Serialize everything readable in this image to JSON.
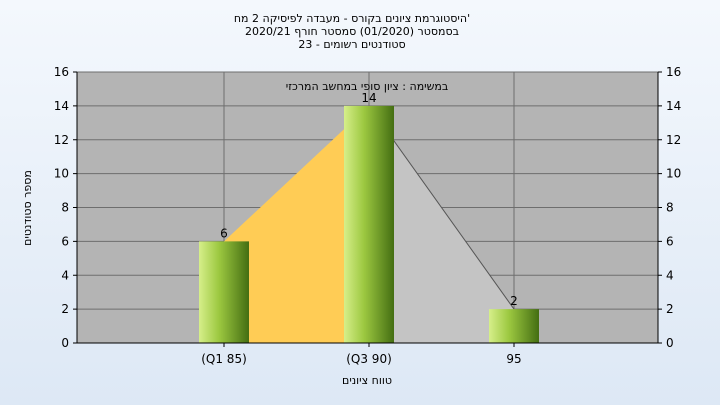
{
  "chart_data": {
    "type": "bar",
    "title_lines": [
      "היסטוגרמת ציונים בקורס - מעבדה לפיסיקה 2 מח'",
      "בסמסטר  (01/2020)  סמסטר חורף  2020/21",
      "סטודנטים רשומים - 23"
    ],
    "note": "במשימה : ציון סופי במחשב המרכזי",
    "xlabel": "טווח ציונים",
    "ylabel": "מספר סטודנטים",
    "categories": [
      "(Q1 85)",
      "(Q3 90)",
      "95"
    ],
    "values": [
      6,
      14,
      2
    ],
    "ylim": [
      0,
      16
    ],
    "yticks": [
      0,
      2,
      4,
      6,
      8,
      10,
      12,
      14,
      16
    ],
    "grid": true,
    "colors": {
      "plot_bg": "#b4b4b4",
      "iqr_fill": "#ffcc55",
      "tail_fill": "#c4c4c4",
      "bar_light": "#d6ef8a",
      "bar_mid": "#9cc840",
      "bar_dark": "#446e12"
    }
  }
}
